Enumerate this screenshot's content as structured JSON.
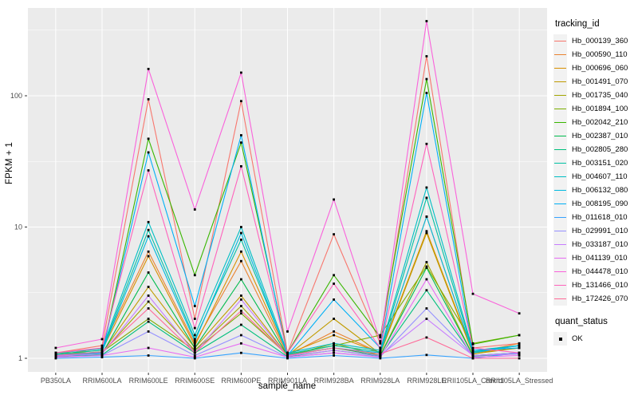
{
  "chart_data": {
    "type": "line",
    "title": "",
    "xlabel": "sample_name",
    "ylabel": "FPKM + 1",
    "yscale": "log10",
    "ylim": [
      0.79,
      467
    ],
    "yticks": [
      1,
      10,
      100
    ],
    "yminor": [
      3.1623,
      31.623,
      316.23
    ],
    "grid": "major-white-on-grey",
    "panel_bg": "#EBEBEB",
    "grid_color": "#FFFFFF",
    "tick_label_color": "#4D4D4D",
    "point_shape": "filled-square",
    "point_color": "#000000",
    "categories": [
      "PB350LA",
      "RRIM600LA",
      "RRIM600LE",
      "RRIM600SE",
      "RRIM600PE",
      "RRIM901LA",
      "RRIM928BA",
      "RRIM928LA",
      "RRIM928LE",
      "RRII105LA_Control",
      "RRII105LA_Stressed"
    ],
    "legend": {
      "title": "tracking_id",
      "position": "right"
    },
    "legend2": {
      "title": "quant_status",
      "items": [
        {
          "label": "OK"
        }
      ]
    },
    "series": [
      {
        "name": "Hb_000139_360",
        "color": "#F8766D",
        "values": [
          1.1,
          1.25,
          94,
          2.0,
          91,
          1.1,
          8.8,
          1.3,
          200,
          1.2,
          1.3
        ]
      },
      {
        "name": "Hb_000590_110",
        "color": "#EA8331",
        "values": [
          1.05,
          1.2,
          6.5,
          1.3,
          5.5,
          1.05,
          1.6,
          1.1,
          12,
          1.1,
          1.3
        ]
      },
      {
        "name": "Hb_000696_060",
        "color": "#D89000",
        "values": [
          1.08,
          1.15,
          6.0,
          1.25,
          6.5,
          1.08,
          1.5,
          1.1,
          9.3,
          1.1,
          1.2
        ]
      },
      {
        "name": "Hb_001491_070",
        "color": "#C09B00",
        "values": [
          1.05,
          1.1,
          3.5,
          1.2,
          3.0,
          1.05,
          2.0,
          1.08,
          9.0,
          1.08,
          1.2
        ]
      },
      {
        "name": "Hb_001735_040",
        "color": "#A3A500",
        "values": [
          1.04,
          1.1,
          2.7,
          1.15,
          2.5,
          1.04,
          1.3,
          1.05,
          5.4,
          1.05,
          1.1
        ]
      },
      {
        "name": "Hb_001894_100",
        "color": "#7CAE00",
        "values": [
          1.06,
          1.12,
          2.0,
          1.15,
          2.2,
          1.06,
          1.25,
          1.5,
          5.0,
          1.3,
          1.5
        ]
      },
      {
        "name": "Hb_002042_210",
        "color": "#39B600",
        "values": [
          1.1,
          1.1,
          47,
          4.3,
          44,
          1.1,
          4.3,
          1.45,
          134,
          1.28,
          1.5
        ]
      },
      {
        "name": "Hb_002387_010",
        "color": "#00BB4E",
        "values": [
          1.05,
          1.08,
          4.5,
          1.2,
          4.0,
          1.05,
          1.2,
          1.05,
          4.9,
          1.05,
          1.1
        ]
      },
      {
        "name": "Hb_002805_280",
        "color": "#00BF7D",
        "values": [
          1.03,
          1.06,
          1.9,
          1.1,
          1.8,
          1.03,
          1.15,
          1.04,
          3.3,
          1.04,
          1.08
        ]
      },
      {
        "name": "Hb_003151_020",
        "color": "#00C1A3",
        "values": [
          1.08,
          1.15,
          9.5,
          1.4,
          8.0,
          1.08,
          1.25,
          1.12,
          16.7,
          1.12,
          1.25
        ]
      },
      {
        "name": "Hb_004607_110",
        "color": "#00BFC4",
        "values": [
          1.1,
          1.18,
          10.9,
          1.5,
          10.0,
          1.1,
          1.3,
          1.15,
          20,
          1.15,
          1.25
        ]
      },
      {
        "name": "Hb_006132_080",
        "color": "#00BAE0",
        "values": [
          1.06,
          1.12,
          8.5,
          1.35,
          9.0,
          1.06,
          1.2,
          1.1,
          12,
          1.1,
          1.25
        ]
      },
      {
        "name": "Hb_008195_090",
        "color": "#00B0F6",
        "values": [
          1.05,
          1.1,
          37,
          2.5,
          50,
          1.05,
          2.8,
          1.2,
          105,
          1.15,
          1.2
        ]
      },
      {
        "name": "Hb_011618_010",
        "color": "#35A2FF",
        "values": [
          1.0,
          1.02,
          1.05,
          1.0,
          1.1,
          1.0,
          1.05,
          1.0,
          1.06,
          1.0,
          1.1
        ]
      },
      {
        "name": "Hb_029991_010",
        "color": "#9590FF",
        "values": [
          1.02,
          1.05,
          1.6,
          1.05,
          1.5,
          1.02,
          1.1,
          1.03,
          2.4,
          1.05,
          1.1
        ]
      },
      {
        "name": "Hb_033187_010",
        "color": "#C77CFF",
        "values": [
          1.04,
          1.08,
          3.0,
          1.1,
          2.8,
          1.04,
          1.15,
          1.05,
          2.0,
          1.05,
          1.08
        ]
      },
      {
        "name": "Hb_041139_010",
        "color": "#E76BF3",
        "values": [
          1.02,
          1.05,
          1.2,
          1.02,
          1.3,
          1.02,
          1.1,
          1.02,
          4.0,
          1.02,
          1.05
        ]
      },
      {
        "name": "Hb_044478_010",
        "color": "#FA62DB",
        "values": [
          1.2,
          1.4,
          160,
          13.6,
          150,
          1.6,
          16.2,
          1.35,
          370,
          3.1,
          2.2
        ]
      },
      {
        "name": "Hb_131466_010",
        "color": "#FF62BC",
        "values": [
          1.1,
          1.2,
          27,
          1.7,
          29,
          1.1,
          3.7,
          1.2,
          43,
          1.2,
          1.1
        ]
      },
      {
        "name": "Hb_172426_070",
        "color": "#FF6A98",
        "values": [
          1.05,
          1.12,
          2.4,
          1.1,
          2.3,
          1.05,
          1.2,
          1.08,
          1.44,
          1.0,
          1.0
        ]
      }
    ]
  }
}
